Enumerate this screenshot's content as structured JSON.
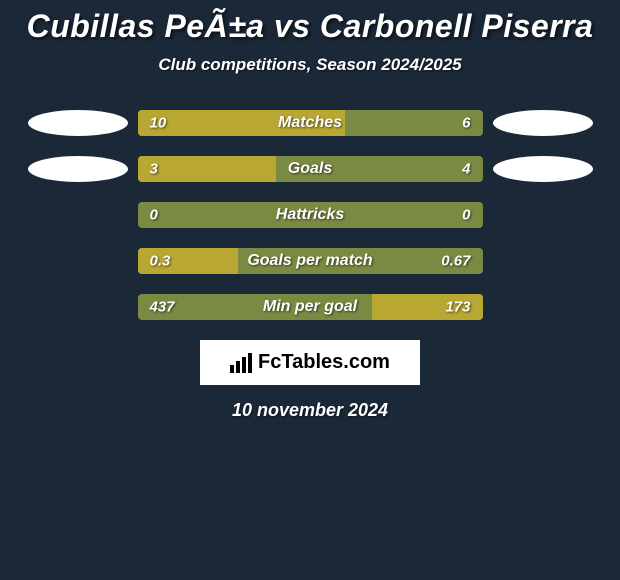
{
  "title": "Cubillas PeÃ±a vs Carbonell Piserra",
  "subtitle": "Club competitions, Season 2024/2025",
  "background_color": "#1b2838",
  "bar_bg_color": "#7b8a43",
  "bar_fill_color": "#b8a833",
  "text_color": "#ffffff",
  "stats": [
    {
      "label": "Matches",
      "left_value": "10",
      "right_value": "6",
      "left_pct": 60,
      "right_pct": 0,
      "show_left_ellipse": true,
      "show_right_ellipse": true
    },
    {
      "label": "Goals",
      "left_value": "3",
      "right_value": "4",
      "left_pct": 40,
      "right_pct": 0,
      "show_left_ellipse": true,
      "show_right_ellipse": true
    },
    {
      "label": "Hattricks",
      "left_value": "0",
      "right_value": "0",
      "left_pct": 0,
      "right_pct": 0,
      "show_left_ellipse": false,
      "show_right_ellipse": false
    },
    {
      "label": "Goals per match",
      "left_value": "0.3",
      "right_value": "0.67",
      "left_pct": 29,
      "right_pct": 0,
      "show_left_ellipse": false,
      "show_right_ellipse": false
    },
    {
      "label": "Min per goal",
      "left_value": "437",
      "right_value": "173",
      "left_pct": 0,
      "right_pct": 32,
      "show_left_ellipse": false,
      "show_right_ellipse": false
    }
  ],
  "logo_text": "FcTables.com",
  "date": "10 november 2024"
}
